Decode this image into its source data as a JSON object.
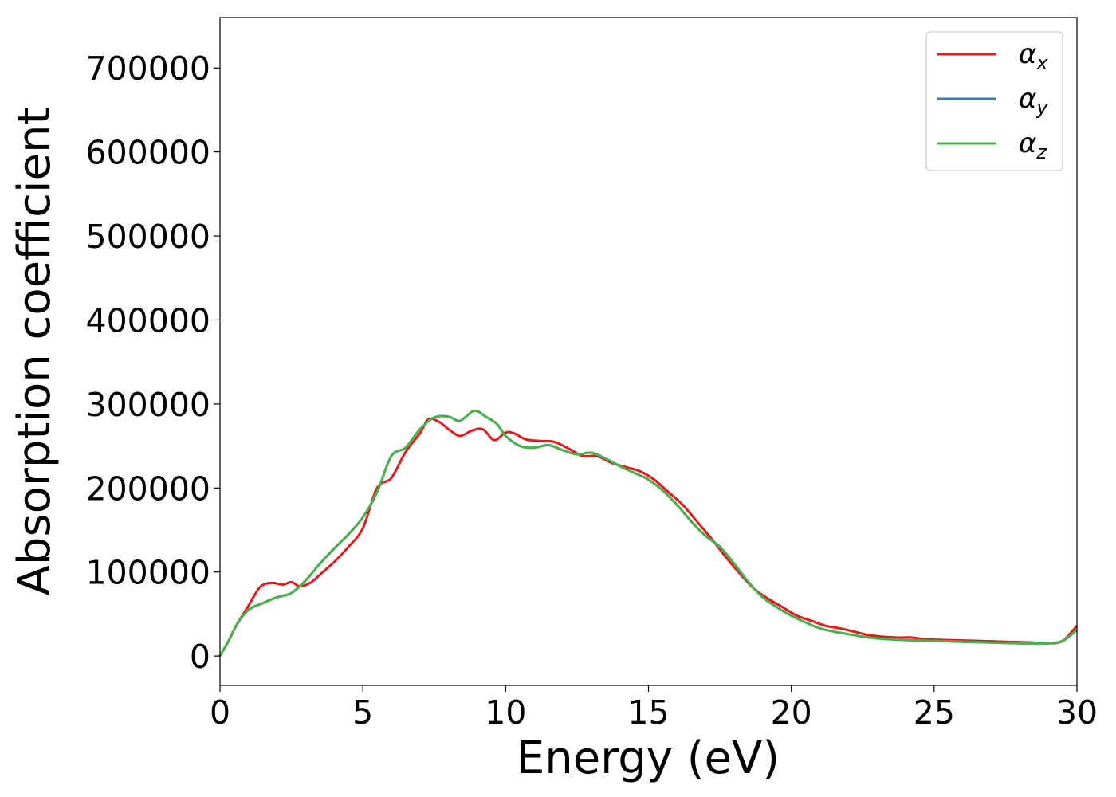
{
  "chart_data": {
    "type": "line",
    "title": "",
    "xlabel": "Energy (eV)",
    "ylabel": "Absorption coefficient",
    "xlim": [
      0,
      30
    ],
    "ylim": [
      -35000,
      760000
    ],
    "xticks": [
      0,
      5,
      10,
      15,
      20,
      25,
      30
    ],
    "xtick_labels": [
      "0",
      "5",
      "10",
      "15",
      "20",
      "25",
      "30"
    ],
    "yticks": [
      0,
      100000,
      200000,
      300000,
      400000,
      500000,
      600000,
      700000
    ],
    "ytick_labels": [
      "0",
      "100000",
      "200000",
      "300000",
      "400000",
      "500000",
      "600000",
      "700000"
    ],
    "grid": false,
    "legend_position": "top-right",
    "series": [
      {
        "name": "α",
        "subscript": "x",
        "color": "#e41a1c",
        "x": [
          0,
          0.3,
          0.6,
          1.0,
          1.4,
          1.8,
          2.2,
          2.5,
          2.8,
          3.2,
          3.6,
          4.0,
          4.5,
          5.0,
          5.5,
          6.0,
          6.5,
          7.0,
          7.3,
          7.7,
          8.0,
          8.4,
          8.8,
          9.2,
          9.6,
          10.0,
          10.3,
          10.7,
          11.2,
          11.7,
          12.2,
          12.7,
          13.2,
          13.7,
          14.2,
          14.7,
          15.2,
          15.7,
          16.2,
          16.7,
          17.2,
          17.7,
          18.2,
          18.7,
          19.2,
          19.7,
          20.2,
          20.7,
          21.2,
          21.7,
          22.2,
          22.7,
          23.2,
          23.7,
          24.2,
          24.7,
          25.5,
          26.5,
          27.5,
          28.5,
          29.0,
          29.5,
          30.0
        ],
        "y": [
          0,
          18000,
          38000,
          60000,
          82000,
          87000,
          85000,
          88000,
          83000,
          88000,
          100000,
          112000,
          130000,
          152000,
          200000,
          212000,
          243000,
          265000,
          282000,
          278000,
          270000,
          262000,
          268000,
          270000,
          257000,
          266000,
          265000,
          258000,
          256000,
          255000,
          247000,
          238000,
          238000,
          230000,
          225000,
          220000,
          210000,
          195000,
          180000,
          160000,
          140000,
          118000,
          98000,
          80000,
          68000,
          58000,
          48000,
          42000,
          36000,
          33000,
          29000,
          25000,
          23000,
          22000,
          22000,
          20000,
          19000,
          18000,
          17000,
          16000,
          15000,
          18000,
          36000
        ]
      },
      {
        "name": "α",
        "subscript": "y",
        "color": "#377eb8",
        "x": [
          0,
          0.3,
          0.6,
          1.0,
          1.5,
          2.0,
          2.5,
          3.0,
          3.5,
          4.0,
          4.5,
          5.0,
          5.5,
          6.0,
          6.5,
          7.0,
          7.5,
          8.0,
          8.4,
          8.9,
          9.3,
          9.7,
          10.0,
          10.5,
          11.0,
          11.5,
          12.0,
          12.5,
          13.0,
          13.5,
          14.0,
          14.5,
          15.0,
          15.5,
          16.0,
          16.5,
          17.0,
          17.5,
          18.0,
          18.5,
          19.0,
          19.5,
          20.0,
          20.5,
          21.0,
          21.5,
          22.0,
          22.5,
          23.0,
          24.0,
          25.0,
          26.0,
          27.0,
          28.0,
          28.5,
          29.0,
          29.5,
          30.0
        ],
        "y": [
          0,
          18000,
          38000,
          55000,
          63000,
          70000,
          75000,
          90000,
          110000,
          128000,
          145000,
          165000,
          195000,
          238000,
          248000,
          270000,
          284000,
          285000,
          280000,
          292000,
          285000,
          276000,
          262000,
          250000,
          248000,
          251000,
          245000,
          240000,
          242000,
          235000,
          226000,
          218000,
          210000,
          197000,
          180000,
          160000,
          143000,
          130000,
          110000,
          88000,
          70000,
          58000,
          48000,
          40000,
          33000,
          29000,
          26000,
          23000,
          21000,
          19000,
          18000,
          17000,
          16000,
          15000,
          15000,
          15000,
          18000,
          31000
        ]
      },
      {
        "name": "α",
        "subscript": "z",
        "color": "#4daf4a",
        "x": [
          0,
          0.3,
          0.6,
          1.0,
          1.5,
          2.0,
          2.5,
          3.0,
          3.5,
          4.0,
          4.5,
          5.0,
          5.5,
          6.0,
          6.5,
          7.0,
          7.5,
          8.0,
          8.4,
          8.9,
          9.3,
          9.7,
          10.0,
          10.5,
          11.0,
          11.5,
          12.0,
          12.5,
          13.0,
          13.5,
          14.0,
          14.5,
          15.0,
          15.5,
          16.0,
          16.5,
          17.0,
          17.5,
          18.0,
          18.5,
          19.0,
          19.5,
          20.0,
          20.5,
          21.0,
          21.5,
          22.0,
          22.5,
          23.0,
          24.0,
          25.0,
          26.0,
          27.0,
          28.0,
          28.5,
          29.0,
          29.5,
          30.0
        ],
        "y": [
          0,
          18000,
          38000,
          55000,
          63000,
          70000,
          75000,
          90000,
          110000,
          128000,
          145000,
          165000,
          195000,
          238000,
          248000,
          270000,
          284000,
          285000,
          280000,
          292000,
          285000,
          276000,
          262000,
          250000,
          248000,
          251000,
          245000,
          240000,
          242000,
          235000,
          226000,
          218000,
          210000,
          197000,
          180000,
          160000,
          143000,
          130000,
          110000,
          88000,
          70000,
          58000,
          48000,
          40000,
          33000,
          29000,
          26000,
          23000,
          21000,
          19000,
          18000,
          17000,
          16000,
          15000,
          15000,
          15000,
          18000,
          31000
        ]
      }
    ]
  }
}
